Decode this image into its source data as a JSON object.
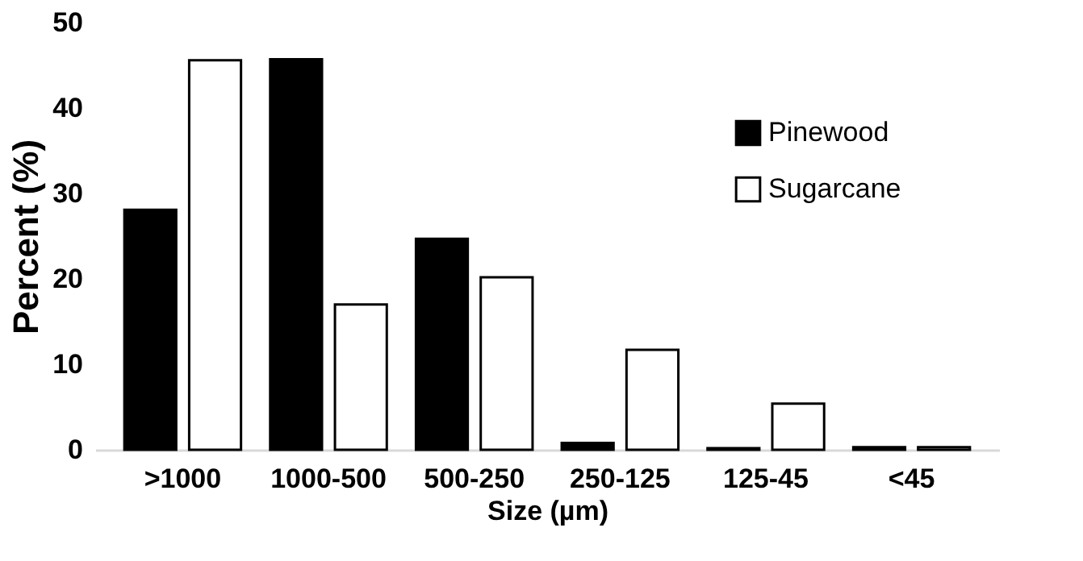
{
  "chart_data": {
    "type": "bar",
    "xlabel": "Size (µm)",
    "ylabel": "Percent (%)",
    "categories": [
      ">1000",
      "1000-500",
      "500-250",
      "250-125",
      "125-45",
      "<45"
    ],
    "series": [
      {
        "name": "Pinewood",
        "color": "#000000",
        "values": [
          28.1,
          45.7,
          24.7,
          0.8,
          0.2,
          0.3
        ]
      },
      {
        "name": "Sugarcane",
        "color": "#ffffff",
        "values": [
          45.6,
          17.0,
          20.2,
          11.7,
          5.4,
          0.3
        ]
      }
    ],
    "ylim": [
      0,
      50
    ],
    "yticks": [
      0,
      10,
      20,
      30,
      40,
      50
    ],
    "grid": false,
    "legend": "top right"
  }
}
